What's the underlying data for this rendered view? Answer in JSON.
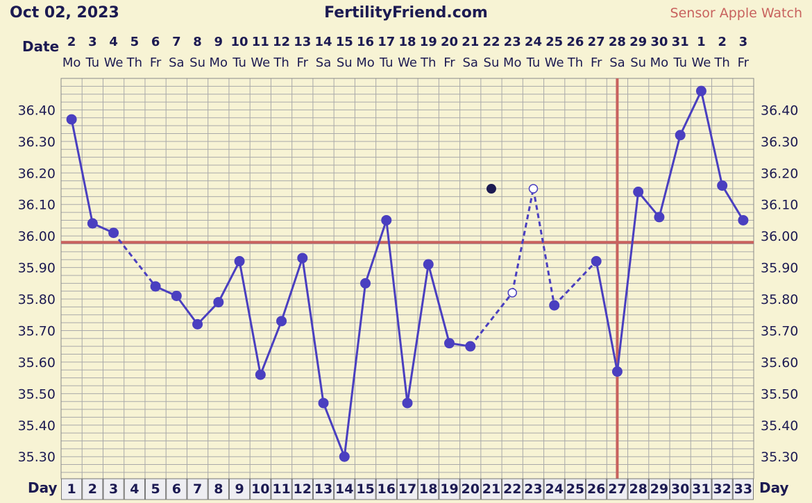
{
  "header": {
    "date": "Oct 02, 2023",
    "site": "FertilityFriend.com",
    "sensor": "Sensor Apple Watch"
  },
  "labels": {
    "date_row": "Date",
    "day_row": "Day"
  },
  "colors": {
    "background": "#f7f3d4",
    "grid": "#a9a9a9",
    "line": "#4a3fc0",
    "coverline": "#c8625e",
    "ovulation": "#c8625e",
    "text": "#1c1a52",
    "day_cell": "#eeeef2"
  },
  "chart_data": {
    "type": "line",
    "title": "",
    "xlabel": "Day",
    "ylabel": "",
    "x": [
      1,
      2,
      3,
      4,
      5,
      6,
      7,
      8,
      9,
      10,
      11,
      12,
      13,
      14,
      15,
      16,
      17,
      18,
      19,
      20,
      21,
      22,
      23,
      24,
      25,
      26,
      27,
      28,
      29,
      30,
      31,
      32,
      33
    ],
    "dates": [
      "2",
      "3",
      "4",
      "5",
      "6",
      "7",
      "8",
      "9",
      "10",
      "11",
      "12",
      "13",
      "14",
      "15",
      "16",
      "17",
      "18",
      "19",
      "20",
      "21",
      "22",
      "23",
      "24",
      "25",
      "26",
      "27",
      "28",
      "29",
      "30",
      "31",
      "1",
      "2",
      "3"
    ],
    "weekdays": [
      "Mo",
      "Tu",
      "We",
      "Th",
      "Fr",
      "Sa",
      "Su",
      "Mo",
      "Tu",
      "We",
      "Th",
      "Fr",
      "Sa",
      "Su",
      "Mo",
      "Tu",
      "We",
      "Th",
      "Fr",
      "Sa",
      "Su",
      "Mo",
      "Tu",
      "We",
      "Th",
      "Fr",
      "Sa",
      "Su",
      "Mo",
      "Tu",
      "We",
      "Th",
      "Fr"
    ],
    "series": [
      {
        "values": [
          36.37,
          36.04,
          36.01,
          null,
          35.84,
          35.81,
          35.72,
          35.79,
          35.92,
          35.56,
          35.73,
          35.93,
          35.47,
          35.3,
          35.85,
          36.05,
          35.47,
          35.91,
          35.66,
          35.65,
          null,
          35.82,
          36.15,
          35.78,
          null,
          35.92,
          35.57,
          36.14,
          36.06,
          36.32,
          36.46,
          36.16,
          36.05
        ],
        "open_points": [
          22,
          23
        ]
      }
    ],
    "discarded_point": {
      "day": 21,
      "value": 36.15
    },
    "coverline": 35.98,
    "ovulation_day": 27,
    "y_ticks": [
      "35.30",
      "35.40",
      "35.50",
      "35.60",
      "35.70",
      "35.80",
      "35.90",
      "36.00",
      "36.10",
      "36.20",
      "36.30",
      "36.40"
    ],
    "ylim": [
      35.23,
      36.5
    ],
    "grid": true
  }
}
